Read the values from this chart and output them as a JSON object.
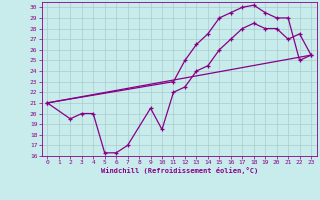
{
  "xlabel": "Windchill (Refroidissement éolien,°C)",
  "bg_color": "#c8ecec",
  "line_color": "#880088",
  "grid_color": "#aacccc",
  "xlim": [
    -0.5,
    23.5
  ],
  "ylim": [
    16,
    30.5
  ],
  "xticks": [
    0,
    1,
    2,
    3,
    4,
    5,
    6,
    7,
    8,
    9,
    10,
    11,
    12,
    13,
    14,
    15,
    16,
    17,
    18,
    19,
    20,
    21,
    22,
    23
  ],
  "yticks": [
    16,
    17,
    18,
    19,
    20,
    21,
    22,
    23,
    24,
    25,
    26,
    27,
    28,
    29,
    30
  ],
  "line1_x": [
    0,
    23
  ],
  "line1_y": [
    21,
    25.5
  ],
  "line2_x": [
    0,
    2,
    3,
    4,
    5,
    6,
    7,
    9,
    10,
    11,
    12,
    13,
    14,
    15,
    16,
    17,
    18,
    19,
    20,
    21,
    22,
    23
  ],
  "line2_y": [
    21,
    19.5,
    20,
    20,
    16.3,
    16.3,
    17,
    20.5,
    18.5,
    22,
    22.5,
    24,
    24.5,
    26,
    27,
    28,
    28.5,
    28,
    28,
    27,
    27.5,
    25.5
  ],
  "line3_x": [
    0,
    11,
    12,
    13,
    14,
    15,
    16,
    17,
    18,
    19,
    20,
    21,
    22,
    23
  ],
  "line3_y": [
    21,
    23,
    25,
    26.5,
    27.5,
    29,
    29.5,
    30,
    30.2,
    29.5,
    29,
    29,
    25,
    25.5
  ]
}
